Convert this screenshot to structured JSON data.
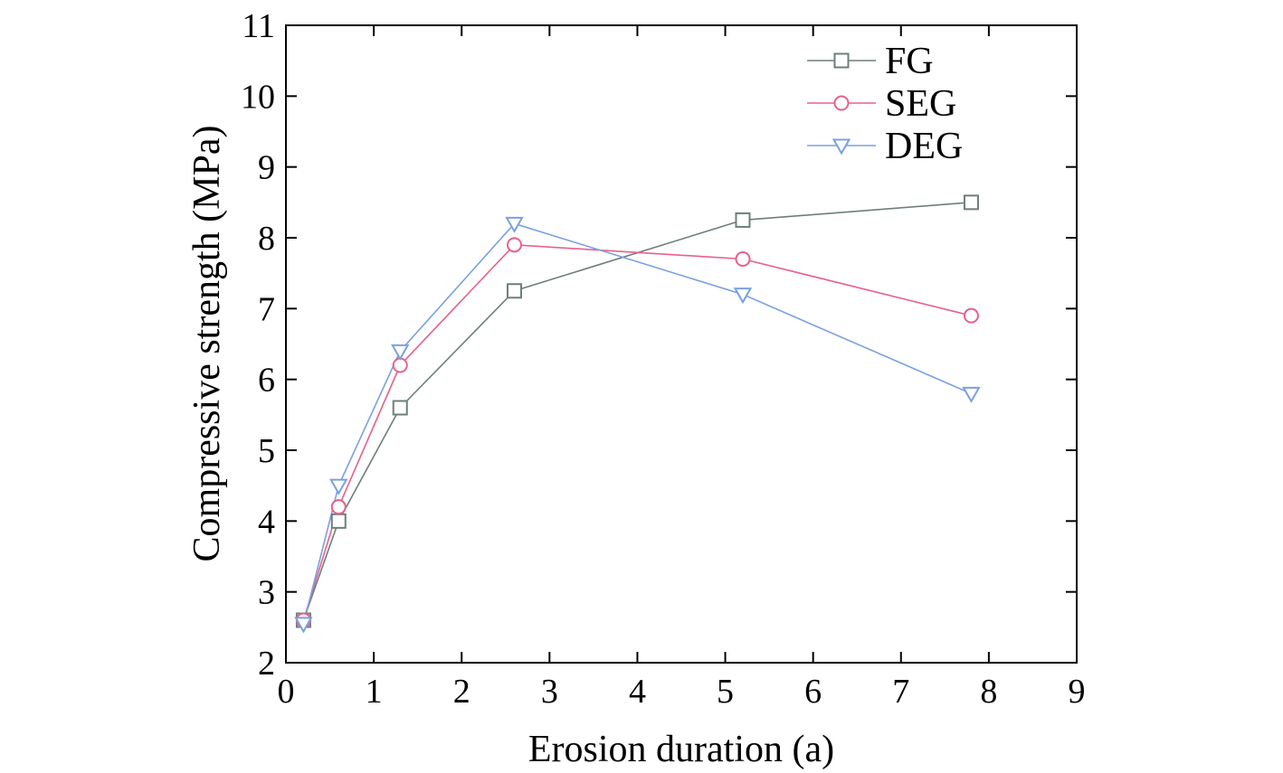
{
  "chart_data": {
    "type": "line",
    "xlabel": "Erosion duration (a)",
    "ylabel": "Compressive strength (MPa)",
    "xlim": [
      0,
      9
    ],
    "ylim": [
      2,
      11
    ],
    "xticks": [
      0,
      1,
      2,
      3,
      4,
      5,
      6,
      7,
      8,
      9
    ],
    "yticks": [
      2,
      3,
      4,
      5,
      6,
      7,
      8,
      9,
      10,
      11
    ],
    "xtick_labels": [
      "0",
      "1",
      "2",
      "3",
      "4",
      "5",
      "6",
      "7",
      "8",
      "9"
    ],
    "ytick_labels": [
      "2",
      "3",
      "4",
      "5",
      "6",
      "7",
      "8",
      "9",
      "10",
      "11"
    ],
    "legend_position": "top-right",
    "grid": false,
    "series": [
      {
        "name": "FG",
        "marker": "square",
        "color": "#6e7f7a",
        "x": [
          0.2,
          0.6,
          1.3,
          2.6,
          5.2,
          7.8
        ],
        "y": [
          2.6,
          4.0,
          5.6,
          7.25,
          8.25,
          8.5
        ]
      },
      {
        "name": "SEG",
        "marker": "circle",
        "color": "#e8608a",
        "x": [
          0.2,
          0.6,
          1.3,
          2.6,
          5.2,
          7.8
        ],
        "y": [
          2.6,
          4.2,
          6.2,
          7.9,
          7.7,
          6.9
        ]
      },
      {
        "name": "DEG",
        "marker": "triangle-down",
        "color": "#7ba0e0",
        "x": [
          0.2,
          0.6,
          1.3,
          2.6,
          5.2,
          7.8
        ],
        "y": [
          2.55,
          4.5,
          6.4,
          8.2,
          7.2,
          5.8
        ]
      }
    ]
  }
}
